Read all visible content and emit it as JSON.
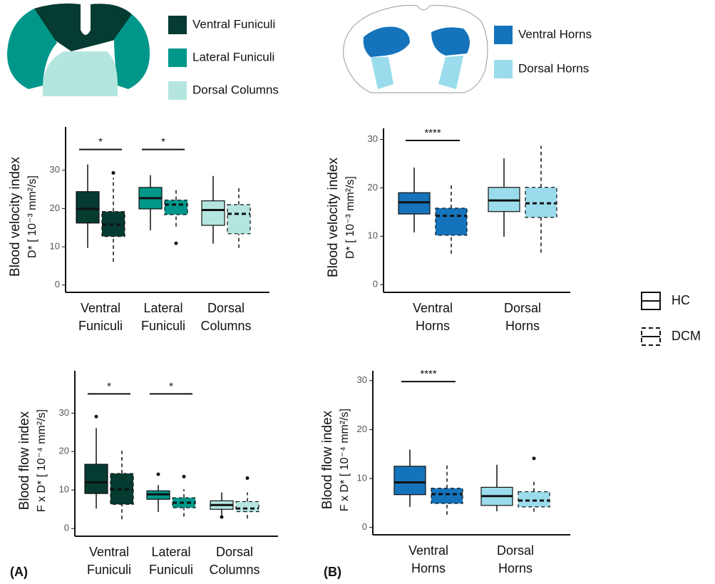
{
  "panels": [
    "(A)",
    "(B)"
  ],
  "diagrams": [
    {
      "regions": [
        {
          "name": "Ventral Funiculi",
          "color": "#053b30"
        },
        {
          "name": "Lateral Funiculi",
          "color": "#00978a"
        },
        {
          "name": "Dorsal Columns",
          "color": "#b4e6df"
        }
      ]
    },
    {
      "regions": [
        {
          "name": "Ventral Horns",
          "color": "#1573bb"
        },
        {
          "name": "Dorsal Horns",
          "color": "#9bdcec"
        }
      ]
    }
  ],
  "chart_data": [
    {
      "type": "box",
      "ylabel": [
        "Blood velocity index",
        "D* [ 10⁻³ mm²/s]"
      ],
      "ylim": [
        -1.9,
        41.3
      ],
      "yticks": [
        0,
        10,
        20,
        30
      ],
      "categories": [
        "Ventral Funiculi",
        "Lateral Funiculi",
        "Dorsal Columns"
      ],
      "colors": [
        "#053b30",
        "#00978a",
        "#b4e6df"
      ],
      "series": [
        {
          "name": "HC",
          "dashed": false,
          "boxes": [
            {
              "whislo": 9.7,
              "q1": 16.2,
              "med": 19.9,
              "q3": 24.4,
              "whishi": 31.5,
              "fliers": []
            },
            {
              "whislo": 14.3,
              "q1": 19.9,
              "med": 22.7,
              "q3": 25.5,
              "whishi": 28.7,
              "fliers": []
            },
            {
              "whislo": 10.8,
              "q1": 15.6,
              "med": 19.6,
              "q3": 22.0,
              "whishi": 28.5,
              "fliers": []
            }
          ]
        },
        {
          "name": "DCM",
          "dashed": true,
          "boxes": [
            {
              "whislo": 6.1,
              "q1": 12.7,
              "med": 15.8,
              "q3": 19.2,
              "whishi": 28.0,
              "fliers": [
                29.3
              ]
            },
            {
              "whislo": 15.3,
              "q1": 18.4,
              "med": 21.0,
              "q3": 22.2,
              "whishi": 25.5,
              "fliers": [
                10.9
              ]
            },
            {
              "whislo": 9.7,
              "q1": 13.4,
              "med": 18.6,
              "q3": 21.0,
              "whishi": 25.7,
              "fliers": []
            }
          ]
        }
      ],
      "annotations": [
        {
          "text": "*",
          "category": 0,
          "y": 35.4
        },
        {
          "text": "*",
          "category": 1,
          "y": 35.4
        }
      ]
    },
    {
      "type": "box",
      "ylabel": [
        "Blood velocity index",
        "D* [ 10⁻³ mm²/s]"
      ],
      "ylim": [
        -1.6,
        32.3
      ],
      "yticks": [
        0,
        10,
        20,
        30
      ],
      "categories": [
        "Ventral Horns",
        "Dorsal Horns"
      ],
      "colors": [
        "#1573bb",
        "#9bdcec"
      ],
      "series": [
        {
          "name": "HC",
          "dashed": false,
          "boxes": [
            {
              "whislo": 10.8,
              "q1": 14.6,
              "med": 17.0,
              "q3": 19.0,
              "whishi": 24.2,
              "fliers": []
            },
            {
              "whislo": 9.9,
              "q1": 15.1,
              "med": 17.4,
              "q3": 20.1,
              "whishi": 26.1,
              "fliers": []
            }
          ]
        },
        {
          "name": "DCM",
          "dashed": true,
          "boxes": [
            {
              "whislo": 6.4,
              "q1": 10.2,
              "med": 14.2,
              "q3": 15.8,
              "whishi": 20.8,
              "fliers": []
            },
            {
              "whislo": 6.6,
              "q1": 13.9,
              "med": 16.8,
              "q3": 20.1,
              "whishi": 28.7,
              "fliers": []
            }
          ]
        }
      ],
      "annotations": [
        {
          "text": "****",
          "category": 0,
          "y": 29.8
        }
      ]
    },
    {
      "type": "box",
      "ylabel": [
        "Blood flow index",
        "F x D* [ 10⁻⁴ mm²/s]"
      ],
      "ylim": [
        -2,
        41
      ],
      "yticks": [
        0,
        10,
        20,
        30
      ],
      "categories": [
        "Ventral Funiculi",
        "Lateral Funiculi",
        "Dorsal Columns"
      ],
      "colors": [
        "#053b30",
        "#00978a",
        "#b4e6df"
      ],
      "series": [
        {
          "name": "HC",
          "dashed": false,
          "boxes": [
            {
              "whislo": 5.2,
              "q1": 9.1,
              "med": 12.0,
              "q3": 16.7,
              "whishi": 26.1,
              "fliers": [
                29.1
              ]
            },
            {
              "whislo": 4.3,
              "q1": 7.6,
              "med": 8.9,
              "q3": 9.8,
              "whishi": 11.3,
              "fliers": [
                14.1
              ]
            },
            {
              "whislo": 3.5,
              "q1": 5.0,
              "med": 6.1,
              "q3": 7.2,
              "whishi": 9.4,
              "fliers": [
                3.0
              ]
            }
          ]
        },
        {
          "name": "DCM",
          "dashed": true,
          "boxes": [
            {
              "whislo": 2.4,
              "q1": 6.3,
              "med": 10.2,
              "q3": 14.3,
              "whishi": 20.9,
              "fliers": []
            },
            {
              "whislo": 3.1,
              "q1": 5.4,
              "med": 6.7,
              "q3": 8.0,
              "whishi": 10.2,
              "fliers": [
                13.5
              ]
            },
            {
              "whislo": 2.6,
              "q1": 4.4,
              "med": 5.2,
              "q3": 7.0,
              "whishi": 9.4,
              "fliers": [
                13.1
              ]
            }
          ]
        }
      ],
      "annotations": [
        {
          "text": "*",
          "category": 0,
          "y": 35
        },
        {
          "text": "*",
          "category": 1,
          "y": 35
        }
      ]
    },
    {
      "type": "box",
      "ylabel": [
        "Blood flow index",
        "F x D* [ 10⁻⁴ mm²/s]"
      ],
      "ylim": [
        -1.5,
        32
      ],
      "yticks": [
        0,
        10,
        20,
        30
      ],
      "categories": [
        "Ventral Horns",
        "Dorsal Horns"
      ],
      "colors": [
        "#1573bb",
        "#9bdcec"
      ],
      "series": [
        {
          "name": "HC",
          "dashed": false,
          "boxes": [
            {
              "whislo": 4.2,
              "q1": 6.7,
              "med": 9.2,
              "q3": 12.5,
              "whishi": 15.9,
              "fliers": []
            },
            {
              "whislo": 3.3,
              "q1": 4.5,
              "med": 6.4,
              "q3": 8.2,
              "whishi": 12.8,
              "fliers": []
            }
          ]
        },
        {
          "name": "DCM",
          "dashed": true,
          "boxes": [
            {
              "whislo": 2.6,
              "q1": 4.9,
              "med": 6.8,
              "q3": 8.0,
              "whishi": 12.8,
              "fliers": []
            },
            {
              "whislo": 3.2,
              "q1": 4.2,
              "med": 5.5,
              "q3": 7.3,
              "whishi": 9.6,
              "fliers": [
                14.1
              ]
            }
          ]
        }
      ],
      "annotations": [
        {
          "text": "****",
          "category": 0,
          "y": 29.8
        }
      ]
    }
  ]
}
